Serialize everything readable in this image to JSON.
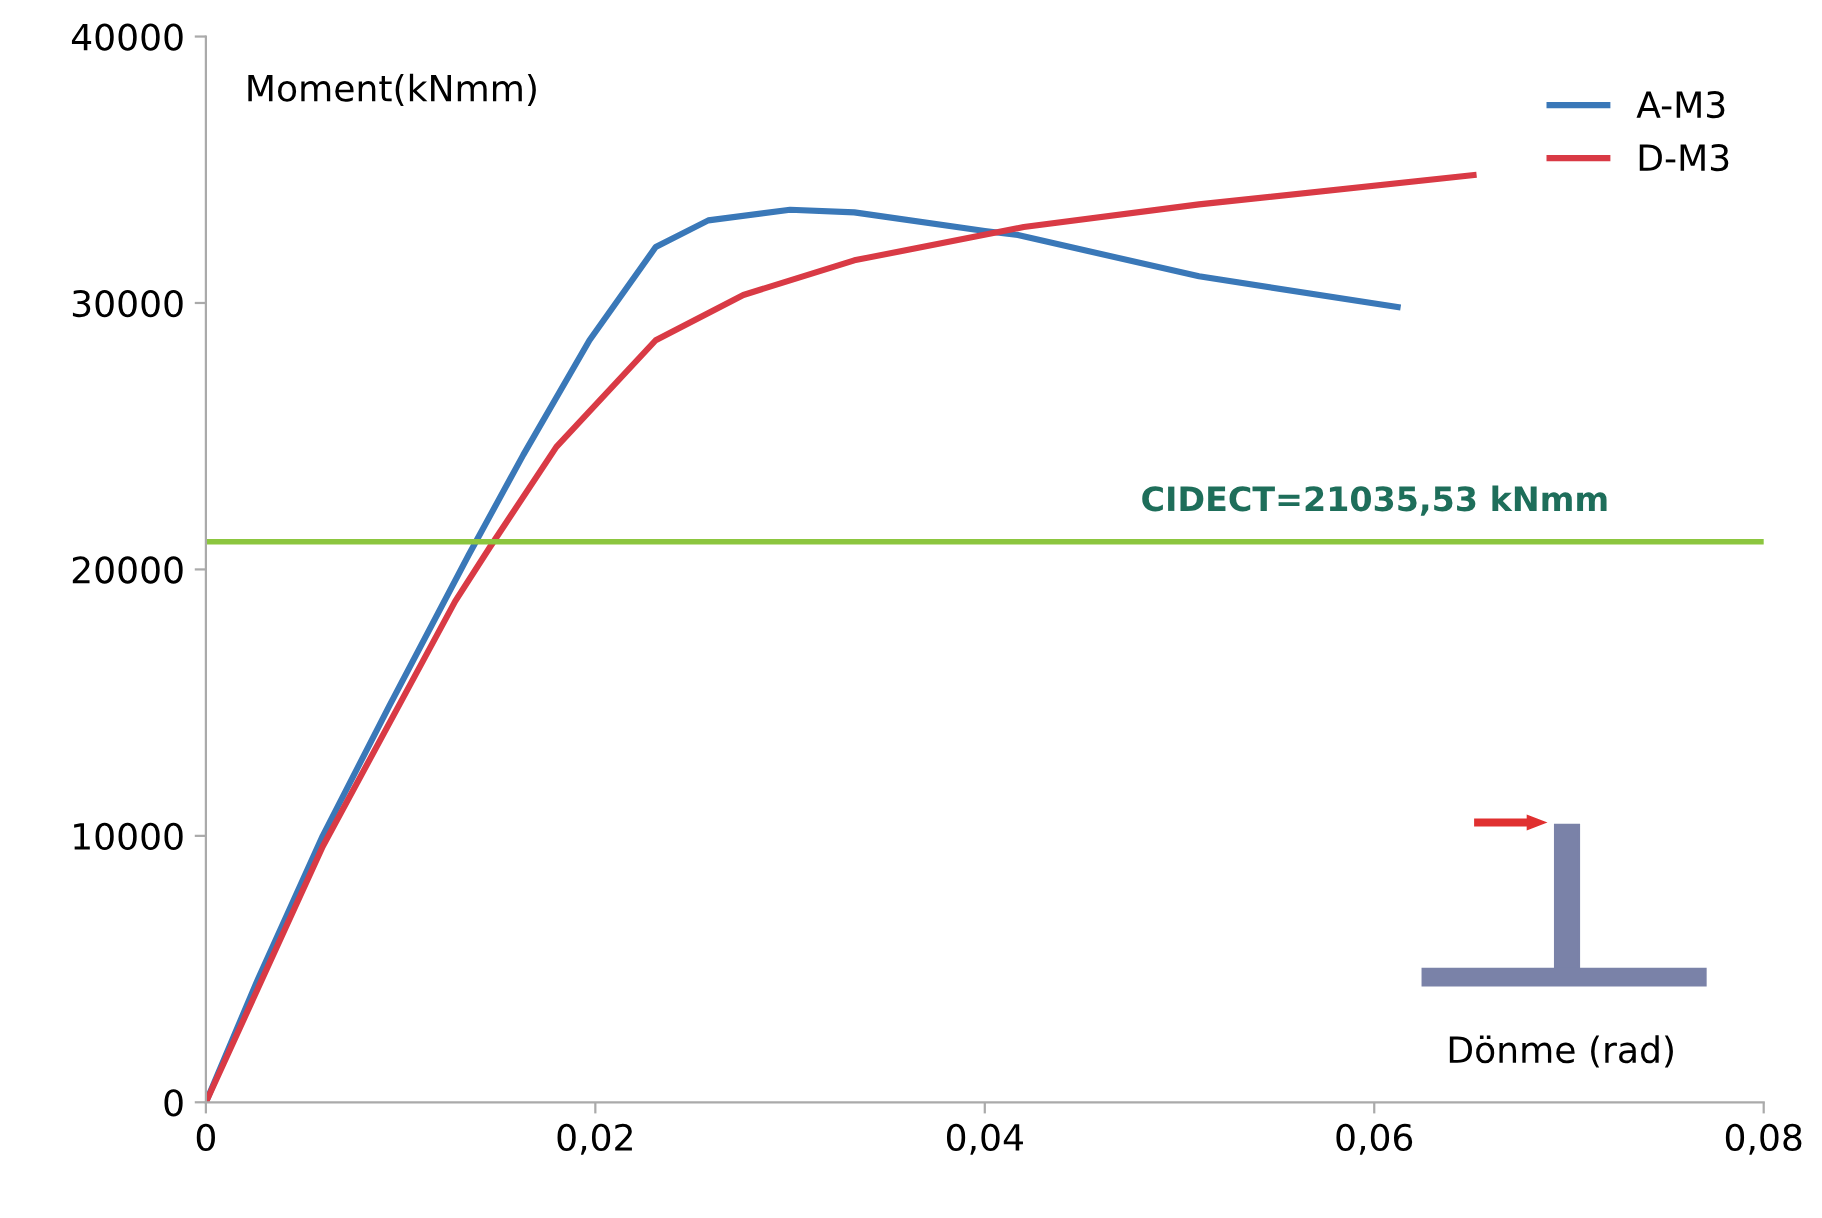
{
  "chart_data": {
    "type": "line",
    "xlabel": "Dönme (rad)",
    "ylabel": "Moment(kNmm)",
    "xlim": [
      0,
      0.08
    ],
    "ylim": [
      0,
      40000
    ],
    "xticks": [
      {
        "value": 0,
        "label": "0"
      },
      {
        "value": 0.02,
        "label": "0,02"
      },
      {
        "value": 0.04,
        "label": "0,04"
      },
      {
        "value": 0.06,
        "label": "0,06"
      },
      {
        "value": 0.08,
        "label": "0,08"
      }
    ],
    "yticks": [
      0,
      10000,
      20000,
      30000,
      40000
    ],
    "grid": false,
    "legend": "top right",
    "marker": "none",
    "line_style": "solid",
    "series": [
      {
        "name": "A-M3",
        "color": "#3a78b8",
        "x": [
          0,
          0.0026,
          0.006,
          0.0094,
          0.0135,
          0.0163,
          0.0197,
          0.0231,
          0.0258,
          0.03,
          0.0333,
          0.04,
          0.0417,
          0.051,
          0.0612
        ],
        "values": [
          0,
          4500,
          10000,
          14850,
          20550,
          24300,
          28600,
          32100,
          33100,
          33500,
          33400,
          32700,
          32550,
          31000,
          29850
        ]
      },
      {
        "name": "D-M3",
        "color": "#d93a45",
        "x": [
          0,
          0.006,
          0.0128,
          0.0146,
          0.018,
          0.0231,
          0.0276,
          0.0333,
          0.042,
          0.051,
          0.0651
        ],
        "values": [
          0,
          9600,
          18800,
          20850,
          24600,
          28600,
          30300,
          31600,
          32850,
          33700,
          34800
        ]
      }
    ],
    "ref_lines": [
      {
        "axis": "y",
        "value": 21035.53,
        "label": "CIDECT=21035,53 kNmm",
        "color": "#8cc63f",
        "line_style": "solid"
      }
    ]
  }
}
